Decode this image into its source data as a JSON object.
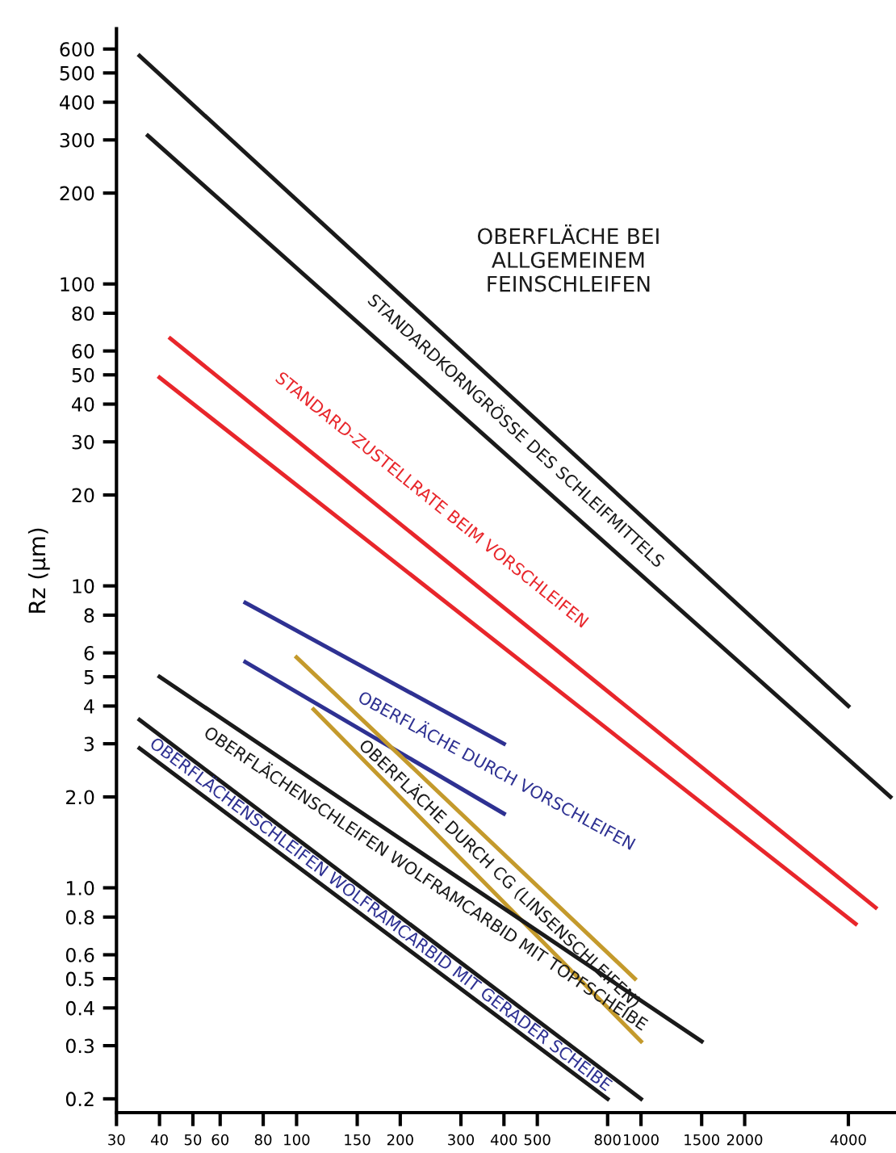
{
  "chart_data": {
    "type": "line",
    "ylabel": "Rz (µm)",
    "log": "xy",
    "grid": false,
    "marker": "none",
    "line_style": "solid",
    "xlim": [
      30,
      5500
    ],
    "ylim": [
      0.18,
      700
    ],
    "xticks": [
      30,
      40,
      50,
      60,
      80,
      100,
      150,
      200,
      300,
      400,
      500,
      800,
      1000,
      1500,
      2000,
      4000
    ],
    "yticks": [
      {
        "value": 0.2,
        "label": "0.2"
      },
      0.3,
      0.4,
      0.5,
      0.6,
      0.8,
      {
        "value": 1.0,
        "label": "1.0"
      },
      {
        "value": 2.0,
        "label": "2.0"
      },
      3,
      4,
      5,
      6,
      8,
      10,
      20,
      30,
      40,
      50,
      60,
      80,
      100,
      200,
      300,
      400,
      500,
      600
    ],
    "series": [
      {
        "color": "#1a1a1a",
        "x": [
          35,
          4000
        ],
        "values": [
          570,
          4.0
        ]
      },
      {
        "color": "#1a1a1a",
        "x": [
          37,
          5300
        ],
        "values": [
          310,
          2.0
        ]
      },
      {
        "color": "#e8262b",
        "x": [
          43,
          4800
        ],
        "values": [
          66,
          0.86
        ]
      },
      {
        "color": "#e8262b",
        "x": [
          40,
          4200
        ],
        "values": [
          49,
          0.76
        ]
      },
      {
        "color": "#2e3192",
        "x": [
          71,
          400
        ],
        "values": [
          8.8,
          3.0
        ]
      },
      {
        "color": "#2e3192",
        "x": [
          71,
          400
        ],
        "values": [
          5.6,
          1.76
        ]
      },
      {
        "color": "#c49a2c",
        "x": [
          100,
          960
        ],
        "values": [
          5.8,
          0.5
        ]
      },
      {
        "color": "#c49a2c",
        "x": [
          112,
          1000
        ],
        "values": [
          3.9,
          0.31
        ]
      },
      {
        "color": "#1a1a1a",
        "x": [
          40,
          1500
        ],
        "values": [
          5.0,
          0.31
        ]
      },
      {
        "color": "#1a1a1a",
        "x": [
          35,
          1000
        ],
        "values": [
          3.6,
          0.2
        ]
      },
      {
        "color": "#1a1a1a",
        "x": [
          35,
          800
        ],
        "values": [
          2.9,
          0.2
        ]
      }
    ],
    "annotations": [
      "STANDARDKORNGRÖSSE DES SCHLEIFMITTELS",
      "STANDARD-ZUSTELLRATE BEIM VORSCHLEIFEN",
      "OBERFLÄCHE DURCH VORSCHLEIFEN",
      "OBERFLÄCHE DURCH CG (LINSENSCHLEIFEN)",
      "OBERFLÄCHENSCHLEIFEN WOLFRAMCARBID MIT TOPFSCHEIBE",
      "OBERFLÄCHENSCHLEIFEN WOLFRAMCARBID MIT GERADER SCHEIBE",
      "OBERFLÄCHE BEI\nALLGEMEINEM\nFEINSCHLEIFEN"
    ]
  }
}
